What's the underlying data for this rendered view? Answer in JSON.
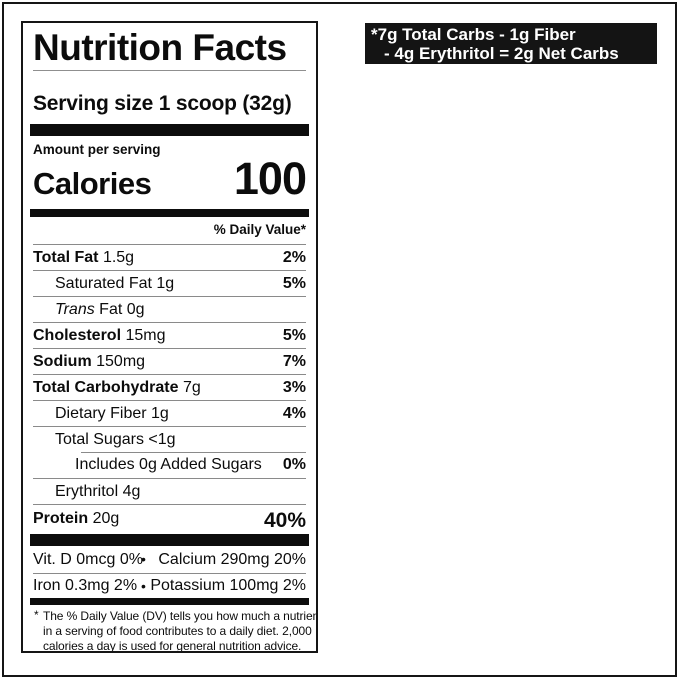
{
  "panel": {
    "title": "Nutrition Facts",
    "serving_size": "Serving size 1 scoop (32g)",
    "amount_per_serving": "Amount per serving",
    "calories": {
      "label": "Calories",
      "value": "100"
    },
    "daily_value_header": "% Daily Value*",
    "rows": [
      {
        "name": "Total Fat",
        "amount": "1.5g",
        "dv": "2%"
      },
      {
        "name": "Saturated Fat",
        "amount": "1g",
        "dv": "5%"
      },
      {
        "italic": "Trans",
        "name": "Fat",
        "amount": "0g",
        "dv": ""
      },
      {
        "name": "Cholesterol",
        "amount": "15mg",
        "dv": "5%"
      },
      {
        "name": "Sodium",
        "amount": "150mg",
        "dv": "7%"
      },
      {
        "name": "Total Carbohydrate",
        "amount": "7g",
        "dv": "3%"
      },
      {
        "name": "Dietary Fiber",
        "amount": "1g",
        "dv": "4%"
      },
      {
        "name": "Total Sugars",
        "amount": "<1g",
        "dv": ""
      },
      {
        "name": "Includes 0g Added Sugars",
        "amount": "",
        "dv": "0%"
      },
      {
        "name": "Erythritol",
        "amount": "4g",
        "dv": ""
      },
      {
        "name": "Protein",
        "amount": "20g",
        "dv": "40%"
      }
    ],
    "micros": [
      {
        "left": "Vit. D 0mcg 0%",
        "bullet": "•",
        "right": "Calcium 290mg 20%"
      },
      {
        "left": "Iron 0.3mg 2%",
        "bullet": "•",
        "right": "Potassium 100mg 2%"
      }
    ],
    "footnote_marker": "*",
    "footnote_lines": [
      "The % Daily Value (DV) tells you how much a nutrient",
      "in a serving of food contributes to a daily diet. 2,000",
      "calories a day is used for general nutrition advice."
    ]
  },
  "badge": {
    "line1": "*7g Total Carbs - 1g Fiber",
    "line2": "- 4g Erythritol = 2g Net Carbs"
  }
}
